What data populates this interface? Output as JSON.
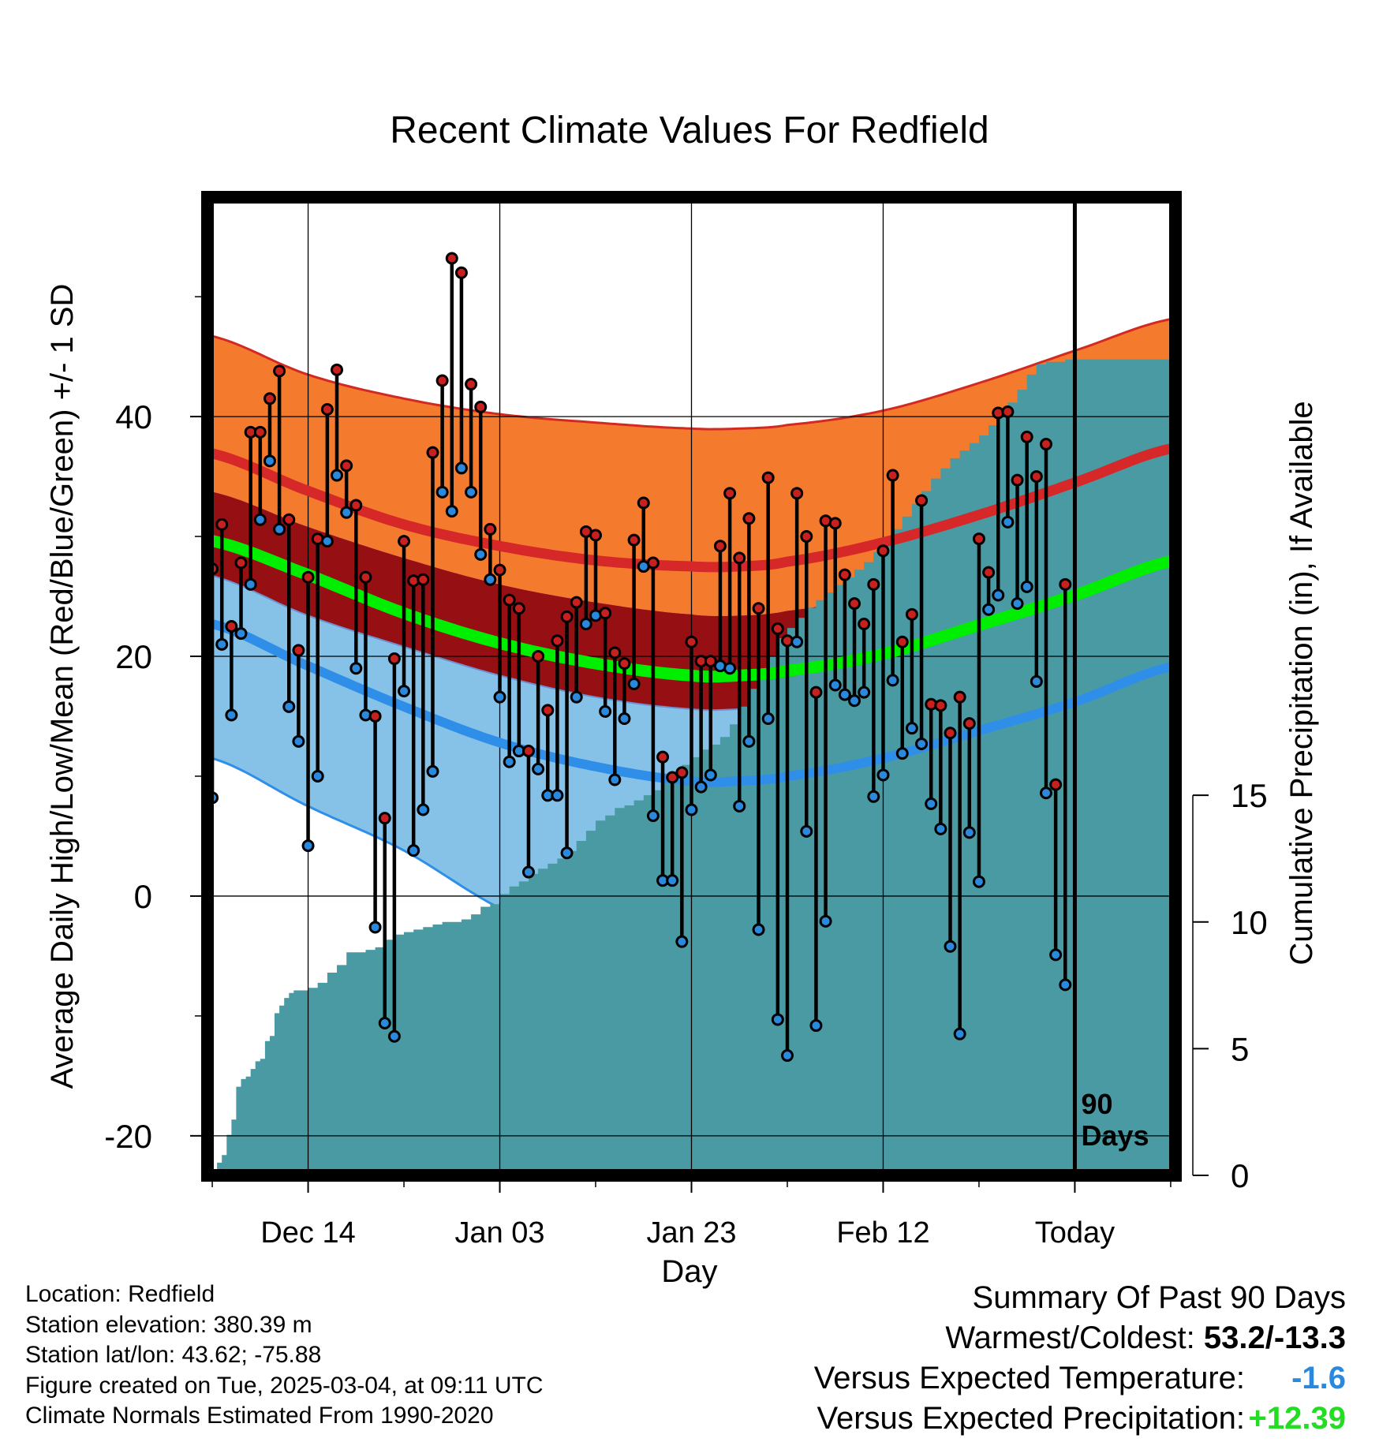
{
  "colors": {
    "high_band": "#f47b2e",
    "high_normal": "#d62828",
    "mean_band": "#950f13",
    "mean_normal": "#00ee00",
    "low_band": "#86c2e8",
    "low_normal": "#2f8fe8",
    "precip": "#4a9aa4",
    "high_point": "#c8201f",
    "low_point": "#2a88dd",
    "below_value": "#2a88dd",
    "above_value": "#22dd22"
  },
  "chart_data": {
    "type": "line",
    "title": "Recent Climate Values For Redfield",
    "xlabel": "Day",
    "ylabel": "Average Daily High/Low/Mean (Red/Blue/Green) +/- 1 SD",
    "y2label": "Cumulative Precipitation (in), If Available",
    "xlim": [
      -10.5,
      90.5
    ],
    "ylim": [
      -23.3,
      58.3
    ],
    "y2lim": [
      0,
      38.6
    ],
    "x_ticks": [
      {
        "x": 0,
        "label": "Dec 14"
      },
      {
        "x": 20,
        "label": "Jan 03"
      },
      {
        "x": 40,
        "label": "Jan 23"
      },
      {
        "x": 60,
        "label": "Feb 12"
      },
      {
        "x": 80,
        "label": "Today"
      }
    ],
    "y_ticks": [
      {
        "y": -20,
        "label": "-20"
      },
      {
        "y": 0,
        "label": "0"
      },
      {
        "y": 20,
        "label": "20"
      },
      {
        "y": 40,
        "label": "40"
      }
    ],
    "y2_ticks": [
      {
        "y": 0,
        "label": "0"
      },
      {
        "y": 5,
        "label": "5"
      },
      {
        "y": 10,
        "label": "10"
      },
      {
        "y": 15,
        "label": "15"
      }
    ],
    "today_x": 80,
    "today_label": [
      "90",
      "Days"
    ],
    "normals": {
      "x": [
        -10.5,
        0,
        10,
        20,
        30,
        40,
        45,
        50,
        60,
        70,
        80,
        90.5
      ],
      "high_upper": [
        46.8,
        43.5,
        41.5,
        40.2,
        39.5,
        39.0,
        39.0,
        39.3,
        40.5,
        42.8,
        45.5,
        48.2
      ],
      "high_mean": [
        37.0,
        33.8,
        31.0,
        29.2,
        28.0,
        27.5,
        27.5,
        27.9,
        29.5,
        31.8,
        34.5,
        37.4
      ],
      "high_lower": [
        33.8,
        30.8,
        28.2,
        26.0,
        24.5,
        23.5,
        23.4,
        23.8,
        25.2,
        27.5,
        28.8,
        30.8
      ],
      "mean_mean": [
        29.7,
        26.8,
        23.6,
        21.1,
        19.4,
        18.4,
        18.4,
        18.8,
        20.2,
        22.6,
        25.1,
        28.0
      ],
      "low_upper": [
        26.8,
        23.4,
        20.8,
        18.4,
        16.6,
        15.6,
        15.6,
        16.0,
        17.6,
        20.0,
        23.2,
        26.6
      ],
      "low_mean": [
        22.8,
        19.2,
        15.8,
        12.8,
        10.8,
        9.6,
        9.6,
        10.0,
        11.5,
        13.8,
        16.2,
        19.2
      ],
      "low_lower": [
        11.6,
        7.5,
        3.8,
        -1.0,
        -4.0,
        -6.0,
        -6.0,
        -5.5,
        -4.0,
        -1.0,
        3.0,
        7.0
      ]
    },
    "series": [
      {
        "name": "High",
        "x": [
          -10,
          -9,
          -8,
          -7,
          -6,
          -5,
          -4,
          -3,
          -2,
          -1,
          0,
          1,
          2,
          3,
          4,
          5,
          6,
          7,
          8,
          9,
          10,
          11,
          12,
          13,
          14,
          15,
          16,
          17,
          18,
          19,
          20,
          21,
          22,
          23,
          24,
          25,
          26,
          27,
          28,
          29,
          30,
          31,
          32,
          33,
          34,
          35,
          36,
          37,
          38,
          39,
          40,
          41,
          42,
          43,
          44,
          45,
          46,
          47,
          48,
          49,
          50,
          51,
          52,
          53,
          54,
          55,
          56,
          57,
          58,
          59,
          60,
          61,
          62,
          63,
          64,
          65,
          66,
          67,
          68,
          69,
          70,
          71,
          72,
          73,
          74,
          75,
          76,
          77,
          78,
          79
        ],
        "values": [
          27.3,
          31.0,
          22.5,
          27.8,
          38.7,
          38.7,
          41.5,
          43.8,
          31.4,
          20.5,
          26.6,
          29.8,
          40.6,
          43.9,
          35.9,
          32.6,
          26.6,
          15.0,
          6.5,
          19.8,
          29.6,
          26.3,
          26.4,
          37.0,
          43.0,
          53.2,
          52.0,
          42.7,
          40.8,
          30.6,
          27.2,
          24.7,
          24.0,
          12.1,
          20.0,
          15.5,
          21.3,
          23.3,
          24.5,
          30.4,
          30.1,
          23.6,
          20.3,
          19.4,
          29.7,
          32.8,
          27.8,
          11.6,
          9.9,
          10.3,
          21.2,
          19.6,
          19.6,
          29.2,
          33.6,
          28.2,
          31.5,
          24.0,
          34.9,
          22.3,
          21.3,
          33.6,
          30.0,
          17.0,
          31.3,
          31.1,
          26.8,
          24.4,
          22.7,
          26.0,
          28.8,
          35.1,
          21.2,
          23.5,
          33.0,
          16.0,
          15.9,
          13.6,
          16.6,
          14.4,
          29.8,
          27.0,
          40.3,
          40.4,
          34.7,
          38.3,
          35.0,
          37.7,
          9.3,
          26.0
        ]
      },
      {
        "name": "Low",
        "x": [
          -10,
          -9,
          -8,
          -7,
          -6,
          -5,
          -4,
          -3,
          -2,
          -1,
          0,
          1,
          2,
          3,
          4,
          5,
          6,
          7,
          8,
          9,
          10,
          11,
          12,
          13,
          14,
          15,
          16,
          17,
          18,
          19,
          20,
          21,
          22,
          23,
          24,
          25,
          26,
          27,
          28,
          29,
          30,
          31,
          32,
          33,
          34,
          35,
          36,
          37,
          38,
          39,
          40,
          41,
          42,
          43,
          44,
          45,
          46,
          47,
          48,
          49,
          50,
          51,
          52,
          53,
          54,
          55,
          56,
          57,
          58,
          59,
          60,
          61,
          62,
          63,
          64,
          65,
          66,
          67,
          68,
          69,
          70,
          71,
          72,
          73,
          74,
          75,
          76,
          77,
          78,
          79
        ],
        "values": [
          8.2,
          21.0,
          15.1,
          21.9,
          26.0,
          31.4,
          36.3,
          30.6,
          15.8,
          12.9,
          4.2,
          10.0,
          29.6,
          35.1,
          32.0,
          19.0,
          15.1,
          -2.6,
          -10.6,
          -11.7,
          17.1,
          3.8,
          7.2,
          10.4,
          33.7,
          32.1,
          35.7,
          33.7,
          28.5,
          26.4,
          16.6,
          11.2,
          12.1,
          2.0,
          10.6,
          8.4,
          8.4,
          3.6,
          16.6,
          22.7,
          23.4,
          15.4,
          9.7,
          14.8,
          17.7,
          27.5,
          6.7,
          1.3,
          1.3,
          -3.8,
          7.2,
          9.1,
          10.1,
          19.2,
          19.0,
          7.5,
          12.9,
          -2.8,
          14.8,
          -10.3,
          -13.3,
          21.2,
          5.4,
          -10.8,
          -2.1,
          17.6,
          16.8,
          16.3,
          17.0,
          8.3,
          10.1,
          18.0,
          11.9,
          14.0,
          12.7,
          7.7,
          5.6,
          -4.2,
          -11.5,
          5.3,
          1.2,
          23.9,
          25.1,
          31.2,
          24.4,
          25.8,
          17.9,
          8.6,
          -4.9,
          -7.4
        ]
      },
      {
        "name": "Cumulative Precipitation",
        "x": [
          -10.5,
          -10,
          -9.5,
          -9,
          -8.5,
          -8,
          -7.5,
          -7,
          -6.5,
          -6,
          -5.5,
          -5,
          -4.5,
          -4,
          -3.5,
          -3,
          -2.5,
          -2,
          -1.5,
          -1,
          0,
          1,
          2,
          3,
          4,
          5,
          6,
          7,
          8,
          9,
          10,
          11,
          12,
          13,
          14,
          15,
          16,
          17,
          18,
          19,
          20,
          21,
          22,
          23,
          24,
          25,
          26,
          27,
          28,
          29,
          30,
          31,
          32,
          33,
          34,
          35,
          36,
          37,
          38,
          39,
          40,
          41,
          42,
          43,
          44,
          45,
          46,
          47,
          48,
          49,
          50,
          51,
          52,
          53,
          54,
          55,
          56,
          57,
          58,
          59,
          60,
          61,
          62,
          63,
          64,
          65,
          66,
          67,
          68,
          69,
          70,
          71,
          72,
          73,
          74,
          75,
          76,
          77,
          78,
          79,
          80,
          81,
          82,
          83,
          84,
          85,
          86,
          87,
          88,
          89,
          90,
          90.5
        ],
        "values": [
          0.0,
          0.0,
          0.5,
          0.8,
          1.6,
          2.2,
          3.5,
          3.8,
          3.9,
          4.2,
          4.5,
          4.6,
          5.3,
          5.5,
          6.4,
          6.7,
          7.0,
          7.2,
          7.3,
          7.3,
          7.4,
          7.6,
          8.0,
          8.3,
          8.8,
          8.8,
          8.9,
          9.0,
          9.3,
          9.5,
          9.6,
          9.7,
          9.8,
          9.9,
          10.0,
          10.0,
          10.1,
          10.3,
          10.6,
          10.7,
          11.1,
          11.4,
          11.6,
          11.9,
          12.1,
          12.3,
          12.5,
          12.8,
          13.2,
          13.6,
          14.0,
          14.2,
          14.5,
          14.6,
          14.8,
          15.0,
          15.2,
          15.5,
          15.8,
          16.2,
          16.5,
          16.8,
          17.0,
          17.3,
          17.8,
          18.5,
          19.2,
          19.8,
          20.5,
          21.2,
          21.6,
          22.0,
          22.4,
          22.7,
          23.0,
          23.3,
          23.6,
          23.9,
          24.2,
          24.6,
          25.0,
          25.5,
          26.0,
          26.5,
          27.0,
          27.5,
          27.9,
          28.3,
          28.6,
          28.9,
          29.2,
          29.6,
          30.0,
          30.5,
          31.0,
          31.6,
          32.0,
          32.1,
          32.1,
          32.2,
          32.2,
          32.2,
          32.2,
          32.2,
          32.2,
          32.2,
          32.2,
          32.2,
          32.2,
          32.2,
          32.2,
          32.2
        ]
      }
    ]
  },
  "info": {
    "location": "Location: Redfield",
    "elevation": "Station elevation: 380.39 m",
    "latlon": "Station lat/lon: 43.62; -75.88",
    "created": "Figure created on Tue, 2025-03-04, at 09:11 UTC",
    "normals": "Climate Normals Estimated From 1990-2020"
  },
  "summary": {
    "title": "Summary Of Past 90 Days",
    "warm_cold_label": "Warmest/Coldest: ",
    "warm_cold_value": "53.2/-13.3",
    "temp_label": "Versus Expected Temperature:",
    "temp_value": "-1.6",
    "precip_label": "Versus Expected Precipitation:",
    "precip_value": "+12.39"
  }
}
